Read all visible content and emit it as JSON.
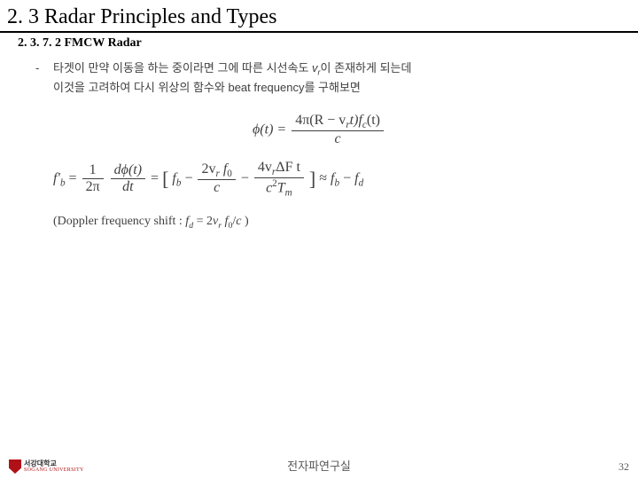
{
  "title": "2. 3 Radar Principles and Types",
  "subtitle": "2. 3. 7. 2 FMCW Radar",
  "bullet": {
    "dash": "-",
    "line1_a": "타겟이 만약 이동을 하는 중이라면 그에 따른 시선속도 ",
    "line1_vr": "v",
    "line1_vr_sub": "r",
    "line1_b": "이 존재하게 되는데",
    "line2_a": "이것을 고려하여 다시 위상의 함수와 ",
    "line2_b": "beat frequency",
    "line2_c": "를 구해보면"
  },
  "eq1": {
    "lhs": "ϕ(t) = ",
    "num": "4π(R − v",
    "num_sub": "r",
    "num_b": "t)f",
    "num_sub2": "c",
    "num_c": "(t)",
    "den": "c"
  },
  "eq2": {
    "lhs_a": "f′",
    "lhs_sub": "b",
    "lhs_b": " = ",
    "frac1_num": "1",
    "frac1_den": "2π",
    "mid": " ",
    "frac2_num": "dϕ(t)",
    "frac2_den": "dt",
    "eq": " = ",
    "br_open": "[",
    "t1_a": "f",
    "t1_sub": "b",
    "minus1": " − ",
    "t2_num_a": "2v",
    "t2_num_sub": "r",
    "t2_num_b": " f",
    "t2_num_sub2": "0",
    "t2_den": "c",
    "minus2": " − ",
    "t3_num_a": "4v",
    "t3_num_sub": "r",
    "t3_num_b": "ΔF t",
    "t3_den_a": "c",
    "t3_den_sup": "2",
    "t3_den_b": "T",
    "t3_den_sub": "m",
    "br_close": "]",
    "approx": " ≈ ",
    "r1_a": "f",
    "r1_sub": "b",
    "minus3": " − ",
    "r2_a": "f",
    "r2_sub": "d"
  },
  "doppler": {
    "open": "(Doppler frequency shift : ",
    "fd_a": "f",
    "fd_sub": "d",
    "eq": " = 2",
    "vr_a": "v",
    "vr_sub": "r",
    "f0_a": " f",
    "f0_sub": "0",
    "over": "/",
    "c": "c",
    "close": " )"
  },
  "footer": {
    "logo_kr": "서강대학교",
    "logo_en": "SOGANG UNIVERSITY",
    "center": "전자파연구실",
    "page": "32"
  }
}
